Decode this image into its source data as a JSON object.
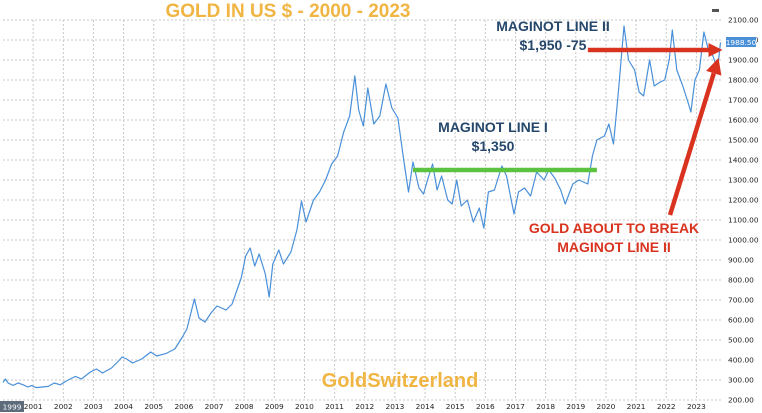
{
  "chart_data": {
    "type": "line",
    "title": "GOLD IN US $ - 2000 - 2023",
    "watermark": "GoldSwitzerland",
    "y_axis": {
      "side": "right",
      "range": [
        200,
        2100
      ],
      "ticks": [
        200,
        300,
        400,
        500,
        600,
        700,
        800,
        900,
        1000,
        1100,
        1200,
        1300,
        1400,
        1500,
        1600,
        1700,
        1800,
        1900,
        2000,
        2100
      ],
      "tick_labels": [
        "200.00",
        "300.00",
        "400.00",
        "500.00",
        "600.00",
        "700.00",
        "800.00",
        "900.00",
        "1000.00",
        "1100.00",
        "1200.00",
        "1300.00",
        "1400.00",
        "1500.00",
        "1600.00",
        "1700.00",
        "1800.00",
        "1900.00",
        "2000.00",
        "2100.00"
      ]
    },
    "x_axis": {
      "range": [
        2000,
        2023.85
      ],
      "ticks": [
        2001,
        2002,
        2003,
        2004,
        2005,
        2006,
        2007,
        2008,
        2009,
        2010,
        2011,
        2012,
        2013,
        2014,
        2015,
        2016,
        2017,
        2018,
        2019,
        2020,
        2021,
        2022,
        2023
      ],
      "start_label": "1999"
    },
    "grid": true,
    "last_value_label": "1988.50",
    "series": [
      {
        "color": "#4a90d9",
        "points": [
          [
            2000.0,
            288
          ],
          [
            2000.08,
            305
          ],
          [
            2000.17,
            285
          ],
          [
            2000.33,
            273
          ],
          [
            2000.5,
            285
          ],
          [
            2000.67,
            276
          ],
          [
            2000.83,
            265
          ],
          [
            2000.95,
            272
          ],
          [
            2001.1,
            262
          ],
          [
            2001.3,
            265
          ],
          [
            2001.5,
            268
          ],
          [
            2001.7,
            285
          ],
          [
            2001.9,
            276
          ],
          [
            2002.1,
            295
          ],
          [
            2002.4,
            318
          ],
          [
            2002.6,
            305
          ],
          [
            2002.9,
            340
          ],
          [
            2003.1,
            355
          ],
          [
            2003.3,
            335
          ],
          [
            2003.6,
            360
          ],
          [
            2003.8,
            390
          ],
          [
            2003.95,
            415
          ],
          [
            2004.1,
            405
          ],
          [
            2004.3,
            385
          ],
          [
            2004.6,
            405
          ],
          [
            2004.9,
            440
          ],
          [
            2005.1,
            420
          ],
          [
            2005.4,
            432
          ],
          [
            2005.7,
            455
          ],
          [
            2005.95,
            515
          ],
          [
            2006.1,
            555
          ],
          [
            2006.35,
            705
          ],
          [
            2006.5,
            610
          ],
          [
            2006.7,
            590
          ],
          [
            2006.9,
            635
          ],
          [
            2007.1,
            670
          ],
          [
            2007.4,
            650
          ],
          [
            2007.6,
            680
          ],
          [
            2007.9,
            810
          ],
          [
            2008.05,
            920
          ],
          [
            2008.2,
            960
          ],
          [
            2008.35,
            870
          ],
          [
            2008.5,
            930
          ],
          [
            2008.7,
            830
          ],
          [
            2008.83,
            715
          ],
          [
            2008.95,
            880
          ],
          [
            2009.15,
            950
          ],
          [
            2009.3,
            880
          ],
          [
            2009.55,
            940
          ],
          [
            2009.75,
            1050
          ],
          [
            2009.9,
            1195
          ],
          [
            2010.05,
            1090
          ],
          [
            2010.3,
            1200
          ],
          [
            2010.5,
            1240
          ],
          [
            2010.7,
            1300
          ],
          [
            2010.9,
            1380
          ],
          [
            2011.1,
            1420
          ],
          [
            2011.3,
            1540
          ],
          [
            2011.5,
            1620
          ],
          [
            2011.67,
            1820
          ],
          [
            2011.8,
            1650
          ],
          [
            2011.95,
            1570
          ],
          [
            2012.1,
            1760
          ],
          [
            2012.3,
            1580
          ],
          [
            2012.5,
            1620
          ],
          [
            2012.7,
            1780
          ],
          [
            2012.9,
            1660
          ],
          [
            2013.1,
            1610
          ],
          [
            2013.3,
            1390
          ],
          [
            2013.45,
            1240
          ],
          [
            2013.6,
            1390
          ],
          [
            2013.8,
            1260
          ],
          [
            2013.95,
            1230
          ],
          [
            2014.1,
            1310
          ],
          [
            2014.25,
            1380
          ],
          [
            2014.4,
            1250
          ],
          [
            2014.55,
            1320
          ],
          [
            2014.75,
            1200
          ],
          [
            2014.9,
            1180
          ],
          [
            2015.05,
            1300
          ],
          [
            2015.2,
            1170
          ],
          [
            2015.4,
            1200
          ],
          [
            2015.6,
            1090
          ],
          [
            2015.8,
            1160
          ],
          [
            2015.95,
            1060
          ],
          [
            2016.1,
            1240
          ],
          [
            2016.3,
            1250
          ],
          [
            2016.55,
            1370
          ],
          [
            2016.7,
            1320
          ],
          [
            2016.95,
            1130
          ],
          [
            2017.1,
            1240
          ],
          [
            2017.3,
            1260
          ],
          [
            2017.5,
            1220
          ],
          [
            2017.7,
            1340
          ],
          [
            2017.95,
            1300
          ],
          [
            2018.1,
            1350
          ],
          [
            2018.3,
            1310
          ],
          [
            2018.5,
            1250
          ],
          [
            2018.65,
            1180
          ],
          [
            2018.9,
            1280
          ],
          [
            2019.1,
            1300
          ],
          [
            2019.4,
            1280
          ],
          [
            2019.55,
            1420
          ],
          [
            2019.7,
            1500
          ],
          [
            2019.95,
            1520
          ],
          [
            2020.1,
            1580
          ],
          [
            2020.25,
            1480
          ],
          [
            2020.4,
            1720
          ],
          [
            2020.6,
            2070
          ],
          [
            2020.75,
            1900
          ],
          [
            2020.95,
            1850
          ],
          [
            2021.1,
            1740
          ],
          [
            2021.25,
            1720
          ],
          [
            2021.45,
            1900
          ],
          [
            2021.6,
            1770
          ],
          [
            2021.8,
            1790
          ],
          [
            2021.95,
            1800
          ],
          [
            2022.1,
            1900
          ],
          [
            2022.2,
            2050
          ],
          [
            2022.35,
            1850
          ],
          [
            2022.55,
            1770
          ],
          [
            2022.7,
            1700
          ],
          [
            2022.82,
            1640
          ],
          [
            2022.95,
            1800
          ],
          [
            2023.1,
            1850
          ],
          [
            2023.25,
            2040
          ],
          [
            2023.4,
            1950
          ],
          [
            2023.55,
            1920
          ],
          [
            2023.7,
            1850
          ],
          [
            2023.8,
            1988
          ]
        ]
      }
    ],
    "annotations": {
      "maginot1": {
        "lines": [
          "MAGINOT LINE I",
          "$1,350"
        ],
        "value": 1350,
        "x_from": 2013.6,
        "x_to": 2019.7,
        "color": "#5cc341"
      },
      "maginot2": {
        "lines": [
          "MAGINOT LINE II",
          "$1,950 -75"
        ],
        "value": 1950,
        "x_from": 2019.4,
        "x_to": 2023.8,
        "color": "#d9331f"
      },
      "break_text": {
        "lines": [
          "GOLD ABOUT TO BREAK",
          "MAGINOT LINE II"
        ],
        "color": "#d9331f"
      }
    },
    "colors": {
      "title": "#f0b542",
      "watermark": "#f0b542",
      "line": "#4a90d9",
      "last_value_box": "#4a90d9"
    }
  }
}
